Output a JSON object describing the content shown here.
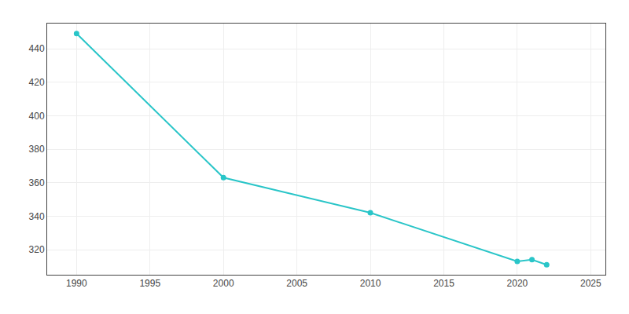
{
  "chart_data": {
    "type": "line",
    "x": [
      1990,
      2000,
      2010,
      2020,
      2021,
      2022
    ],
    "values": [
      449,
      363,
      342,
      313,
      314,
      311
    ],
    "color": "#29c5c8",
    "marker": "circle",
    "xlim": [
      1988,
      2026
    ],
    "ylim": [
      305,
      455
    ],
    "xticks": [
      1990,
      1995,
      2000,
      2005,
      2010,
      2015,
      2020,
      2025
    ],
    "yticks": [
      320,
      340,
      360,
      380,
      400,
      420,
      440
    ],
    "grid": true
  }
}
